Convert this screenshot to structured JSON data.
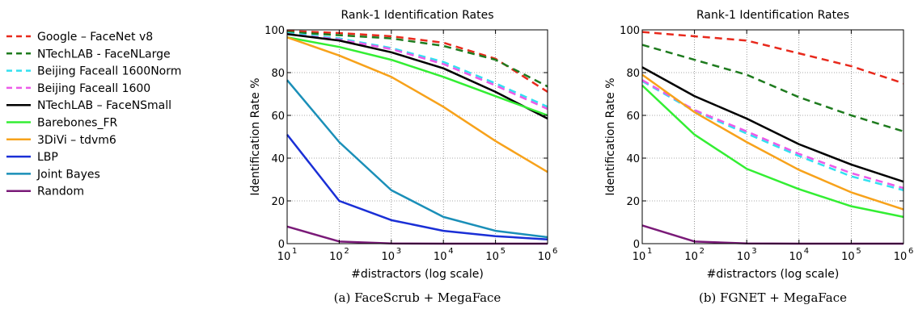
{
  "legend": [
    {
      "name": "Google – FaceNet v8",
      "color": "#e8291c",
      "dashed": true
    },
    {
      "name": "NTechLAB - FaceNLarge",
      "color": "#1e7b1e",
      "dashed": true
    },
    {
      "name": "Beijing Faceall 1600Norm",
      "color": "#33e0f0",
      "dashed": true
    },
    {
      "name": "Beijing Faceall 1600",
      "color": "#ec5ae8",
      "dashed": true
    },
    {
      "name": "NTechLAB – FaceNSmall",
      "color": "#000000",
      "dashed": false
    },
    {
      "name": "Barebones_FR",
      "color": "#33ee33",
      "dashed": false
    },
    {
      "name": "3DiVi – tdvm6",
      "color": "#f7a21b",
      "dashed": false
    },
    {
      "name": "LBP",
      "color": "#1a2fd6",
      "dashed": false
    },
    {
      "name": "Joint Bayes",
      "color": "#1a8fb8",
      "dashed": false
    },
    {
      "name": "Random",
      "color": "#7a1a78",
      "dashed": false
    }
  ],
  "chart_data": [
    {
      "type": "line",
      "title": "Rank-1 Identification Rates",
      "xlabel": "#distractors (log scale)",
      "ylabel": "Identification Rate %",
      "caption": "(a) FaceScrub + MegaFace",
      "xscale": "log",
      "xlim": [
        10,
        1000000
      ],
      "ylim": [
        0,
        100
      ],
      "grid": true,
      "x": [
        10,
        100,
        1000,
        10000,
        100000,
        1000000
      ],
      "x_ticks": [
        {
          "base": "10",
          "exp": "1"
        },
        {
          "base": "10",
          "exp": "2"
        },
        {
          "base": "10",
          "exp": "3"
        },
        {
          "base": "10",
          "exp": "4"
        },
        {
          "base": "10",
          "exp": "5"
        },
        {
          "base": "10",
          "exp": "6"
        }
      ],
      "y_ticks": [
        "0",
        "20",
        "40",
        "60",
        "80",
        "100"
      ],
      "series": [
        {
          "name": "Google – FaceNet v8",
          "values": [
            99.5,
            98.5,
            97,
            94,
            86.5,
            71
          ]
        },
        {
          "name": "NTechLAB - FaceNLarge",
          "values": [
            99,
            97.5,
            96,
            92.5,
            86,
            73.5
          ]
        },
        {
          "name": "Beijing Faceall 1600Norm",
          "values": [
            98.5,
            96,
            91.5,
            85,
            75,
            64
          ]
        },
        {
          "name": "Beijing Faceall 1600",
          "values": [
            98,
            95.5,
            91,
            84,
            74,
            63
          ]
        },
        {
          "name": "NTechLAB – FaceNSmall",
          "values": [
            98,
            95,
            89.5,
            82,
            71,
            58.5
          ]
        },
        {
          "name": "Barebones_FR",
          "values": [
            96.5,
            92,
            86,
            78,
            69,
            60
          ]
        },
        {
          "name": "3DiVi – tdvm6",
          "values": [
            96.5,
            88,
            78,
            64,
            48,
            33.5
          ]
        },
        {
          "name": "LBP",
          "values": [
            51,
            20,
            11,
            6,
            3.5,
            2
          ]
        },
        {
          "name": "Joint Bayes",
          "values": [
            76.5,
            47.5,
            25,
            12.5,
            6,
            3
          ]
        },
        {
          "name": "Random",
          "values": [
            8,
            1,
            0.1,
            0,
            0,
            0
          ]
        }
      ]
    },
    {
      "type": "line",
      "title": "Rank-1 Identification Rates",
      "xlabel": "#distractors (log scale)",
      "ylabel": "Identification Rate %",
      "caption": "(b) FGNET + MegaFace",
      "xscale": "log",
      "xlim": [
        10,
        1000000
      ],
      "ylim": [
        0,
        100
      ],
      "grid": true,
      "x": [
        10,
        100,
        1000,
        10000,
        100000,
        1000000
      ],
      "x_ticks": [
        {
          "base": "10",
          "exp": "1"
        },
        {
          "base": "10",
          "exp": "2"
        },
        {
          "base": "10",
          "exp": "3"
        },
        {
          "base": "10",
          "exp": "4"
        },
        {
          "base": "10",
          "exp": "5"
        },
        {
          "base": "10",
          "exp": "6"
        }
      ],
      "y_ticks": [
        "0",
        "20",
        "40",
        "60",
        "80",
        "100"
      ],
      "series": [
        {
          "name": "Google – FaceNet v8",
          "values": [
            99,
            97,
            95,
            89,
            83,
            75
          ]
        },
        {
          "name": "NTechLAB - FaceNLarge",
          "values": [
            93,
            86,
            79,
            68.5,
            60,
            52.5
          ]
        },
        {
          "name": "Beijing Faceall 1600Norm",
          "values": [
            76,
            62,
            51.5,
            41,
            31.5,
            25
          ]
        },
        {
          "name": "Beijing Faceall 1600",
          "values": [
            76.5,
            62.5,
            52.5,
            42,
            33,
            26
          ]
        },
        {
          "name": "NTechLAB – FaceNSmall",
          "values": [
            82.5,
            69,
            58.5,
            46.5,
            37,
            29
          ]
        },
        {
          "name": "Barebones_FR",
          "values": [
            74,
            51,
            35,
            25.5,
            17.5,
            12.5
          ]
        },
        {
          "name": "3DiVi – tdvm6",
          "values": [
            79,
            61.5,
            47.5,
            34.5,
            24,
            16
          ]
        },
        {
          "name": "LBP",
          "values": [
            0,
            0,
            0,
            0,
            0,
            0
          ]
        },
        {
          "name": "Joint Bayes",
          "values": [
            0,
            0,
            0,
            0,
            0,
            0
          ]
        },
        {
          "name": "Random",
          "values": [
            8.5,
            1,
            0.1,
            0,
            0,
            0
          ]
        }
      ]
    }
  ]
}
